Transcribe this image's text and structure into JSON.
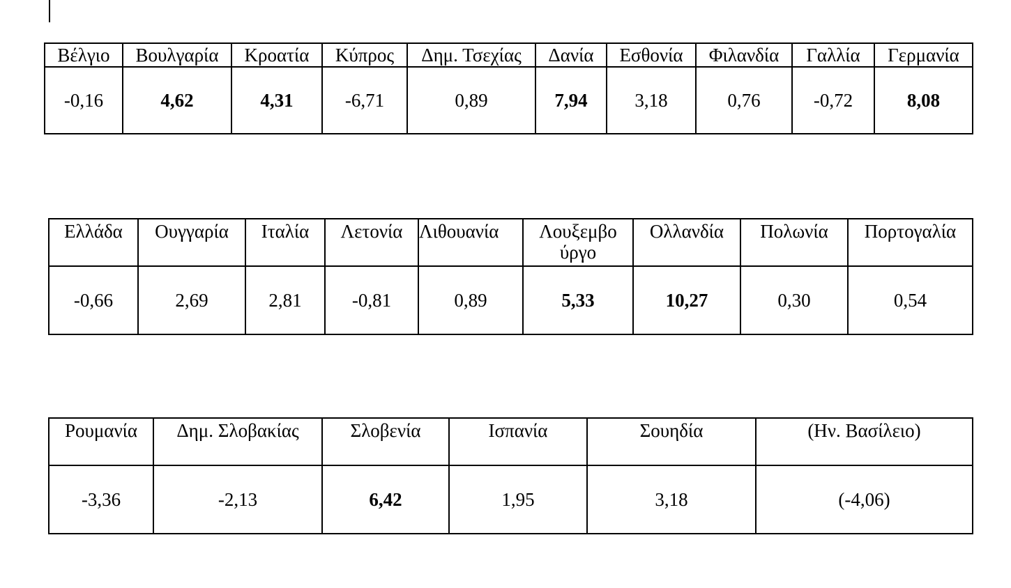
{
  "tables": [
    {
      "headers": [
        "Βέλγιο",
        "Βουλγαρία",
        "Κροατία",
        "Κύπρος",
        "Δημ. Τσεχίας",
        "Δανία",
        "Εσθονία",
        "Φιλανδία",
        "Γαλλία",
        "Γερμανία"
      ],
      "values": [
        "-0,16",
        "4,62",
        "4,31",
        "-6,71",
        "0,89",
        "7,94",
        "3,18",
        "0,76",
        "-0,72",
        "8,08"
      ],
      "bold": [
        false,
        true,
        true,
        false,
        false,
        true,
        false,
        false,
        false,
        true
      ]
    },
    {
      "headers": [
        "Ελλάδα",
        "Ουγγαρία",
        "Ιταλία",
        "Λετονία",
        "Λιθουανία",
        "Λουξεμβο ύργο",
        "Ολλανδία",
        "Πολωνία",
        "Πορτογαλία"
      ],
      "values": [
        "-0,66",
        "2,69",
        "2,81",
        "-0,81",
        "0,89",
        "5,33",
        "10,27",
        "0,30",
        "0,54"
      ],
      "bold": [
        false,
        false,
        false,
        false,
        false,
        true,
        true,
        false,
        false
      ]
    },
    {
      "headers": [
        "Ρουμανία",
        "Δημ. Σλοβακίας",
        "Σλοβενία",
        "Ισπανία",
        "Σουηδία",
        "(Ην. Βασίλειο)"
      ],
      "values": [
        "-3,36",
        "-2,13",
        "6,42",
        "1,95",
        "3,18",
        "(-4,06)"
      ],
      "bold": [
        false,
        false,
        true,
        false,
        false,
        false
      ]
    }
  ]
}
